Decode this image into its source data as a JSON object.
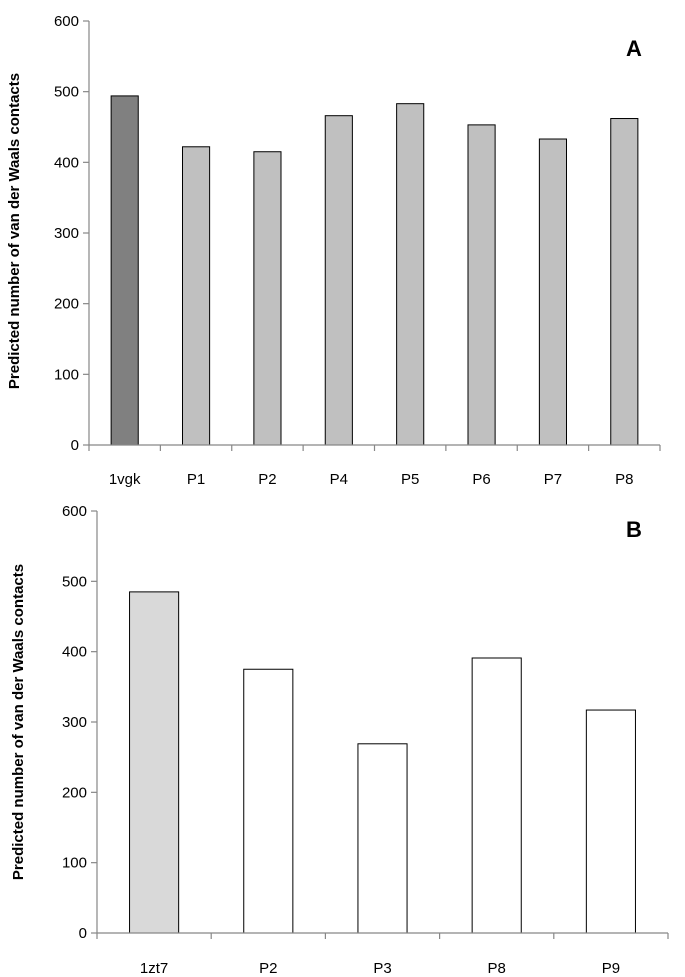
{
  "chart_data": [
    {
      "type": "bar",
      "panel_label": "A",
      "ylabel": "Predicted number of van der Waals contacts",
      "xlabel": "",
      "ylim": [
        0,
        600
      ],
      "yticks": [
        0,
        100,
        200,
        300,
        400,
        500,
        600
      ],
      "categories": [
        "1vgk",
        "P1",
        "P2",
        "P4",
        "P5",
        "P6",
        "P7",
        "P8"
      ],
      "values": [
        494,
        422,
        415,
        466,
        483,
        453,
        433,
        462
      ],
      "bar_colors": [
        "#808080",
        "#c0c0c0",
        "#c0c0c0",
        "#c0c0c0",
        "#c0c0c0",
        "#c0c0c0",
        "#c0c0c0",
        "#c0c0c0"
      ],
      "grid": false,
      "legend": "none"
    },
    {
      "type": "bar",
      "panel_label": "B",
      "ylabel": "Predicted number of van der Waals contacts",
      "xlabel": "",
      "ylim": [
        0,
        600
      ],
      "yticks": [
        0,
        100,
        200,
        300,
        400,
        500,
        600
      ],
      "categories": [
        "1zt7",
        "P2",
        "P3",
        "P8",
        "P9"
      ],
      "values": [
        485,
        375,
        269,
        391,
        317
      ],
      "bar_colors": [
        "#d9d9d9",
        "#ffffff",
        "#ffffff",
        "#ffffff",
        "#ffffff"
      ],
      "grid": false,
      "legend": "none"
    }
  ]
}
